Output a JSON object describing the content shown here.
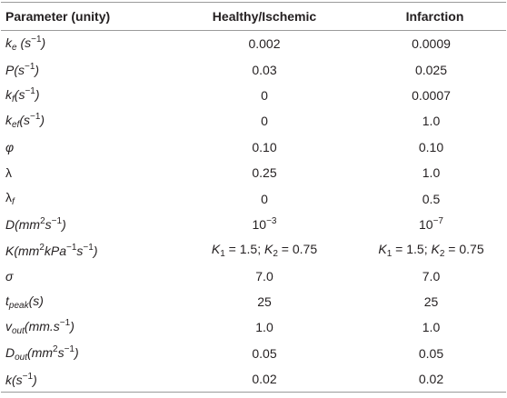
{
  "table": {
    "header": [
      "Parameter (unity)",
      "Healthy/Ischemic",
      "Infarction"
    ],
    "rows": [
      [
        [
          {
            "text": "k",
            "style": "italic"
          },
          {
            "text": "e",
            "style": "sub-italic"
          },
          {
            "text": " (s",
            "style": "italic"
          },
          {
            "text": "−1",
            "style": "sup"
          },
          {
            "text": ")",
            "style": "italic"
          }
        ],
        "0.002",
        "0.0009"
      ],
      [
        [
          {
            "text": "P(s",
            "style": "italic"
          },
          {
            "text": "−1",
            "style": "sup"
          },
          {
            "text": ")",
            "style": "italic"
          }
        ],
        "0.03",
        "0.025"
      ],
      [
        [
          {
            "text": "k",
            "style": "italic"
          },
          {
            "text": "f",
            "style": "sub-italic"
          },
          {
            "text": "(s",
            "style": "italic"
          },
          {
            "text": "−1",
            "style": "sup"
          },
          {
            "text": ")",
            "style": "italic"
          }
        ],
        "0",
        "0.0007"
      ],
      [
        [
          {
            "text": "k",
            "style": "italic"
          },
          {
            "text": "ef",
            "style": "sub-italic"
          },
          {
            "text": "(s",
            "style": "italic"
          },
          {
            "text": "−1",
            "style": "sup"
          },
          {
            "text": ")",
            "style": "italic"
          }
        ],
        "0",
        "1.0"
      ],
      [
        [
          {
            "text": "φ",
            "style": "italic"
          }
        ],
        "0.10",
        "0.10"
      ],
      [
        [
          {
            "text": "λ",
            "style": "normal"
          }
        ],
        "0.25",
        "1.0"
      ],
      [
        [
          {
            "text": "λ",
            "style": "normal"
          },
          {
            "text": "f",
            "style": "sub-italic"
          }
        ],
        "0",
        "0.5"
      ],
      [
        [
          {
            "text": "D(mm",
            "style": "italic"
          },
          {
            "text": "2",
            "style": "sup"
          },
          {
            "text": "s",
            "style": "italic"
          },
          {
            "text": "−1",
            "style": "sup"
          },
          {
            "text": ")",
            "style": "italic"
          }
        ],
        [
          {
            "text": "10",
            "style": "normal"
          },
          {
            "text": "−3",
            "style": "sup"
          }
        ],
        [
          {
            "text": "10",
            "style": "normal"
          },
          {
            "text": "−7",
            "style": "sup"
          }
        ]
      ],
      [
        [
          {
            "text": "K(mm",
            "style": "italic"
          },
          {
            "text": "2",
            "style": "sup"
          },
          {
            "text": "kPa",
            "style": "italic"
          },
          {
            "text": "−1",
            "style": "sup"
          },
          {
            "text": "s",
            "style": "italic"
          },
          {
            "text": "−1",
            "style": "sup"
          },
          {
            "text": ")",
            "style": "italic"
          }
        ],
        [
          {
            "text": "K",
            "style": "italic"
          },
          {
            "text": "1",
            "style": "sub"
          },
          {
            "text": " = 1.5; ",
            "style": "normal"
          },
          {
            "text": "K",
            "style": "italic"
          },
          {
            "text": "2",
            "style": "sub"
          },
          {
            "text": " = 0.75",
            "style": "normal"
          }
        ],
        [
          {
            "text": "K",
            "style": "italic"
          },
          {
            "text": "1",
            "style": "sub"
          },
          {
            "text": " = 1.5; ",
            "style": "normal"
          },
          {
            "text": "K",
            "style": "italic"
          },
          {
            "text": "2",
            "style": "sub"
          },
          {
            "text": " = 0.75",
            "style": "normal"
          }
        ]
      ],
      [
        [
          {
            "text": "σ",
            "style": "italic"
          }
        ],
        "7.0",
        "7.0"
      ],
      [
        [
          {
            "text": "t",
            "style": "italic"
          },
          {
            "text": "peak",
            "style": "sub-italic"
          },
          {
            "text": "(s)",
            "style": "italic"
          }
        ],
        "25",
        "25"
      ],
      [
        [
          {
            "text": "v",
            "style": "italic"
          },
          {
            "text": "out",
            "style": "sub-italic"
          },
          {
            "text": "(mm.s",
            "style": "italic"
          },
          {
            "text": "−1",
            "style": "sup"
          },
          {
            "text": ")",
            "style": "italic"
          }
        ],
        "1.0",
        "1.0"
      ],
      [
        [
          {
            "text": "D",
            "style": "italic"
          },
          {
            "text": "out",
            "style": "sub-italic"
          },
          {
            "text": "(mm",
            "style": "italic"
          },
          {
            "text": "2",
            "style": "sup"
          },
          {
            "text": "s",
            "style": "italic"
          },
          {
            "text": "−1",
            "style": "sup"
          },
          {
            "text": ")",
            "style": "italic"
          }
        ],
        "0.05",
        "0.05"
      ],
      [
        [
          {
            "text": "k(s",
            "style": "italic"
          },
          {
            "text": "−1",
            "style": "sup"
          },
          {
            "text": ")",
            "style": "italic"
          }
        ],
        "0.02",
        "0.02"
      ]
    ]
  }
}
